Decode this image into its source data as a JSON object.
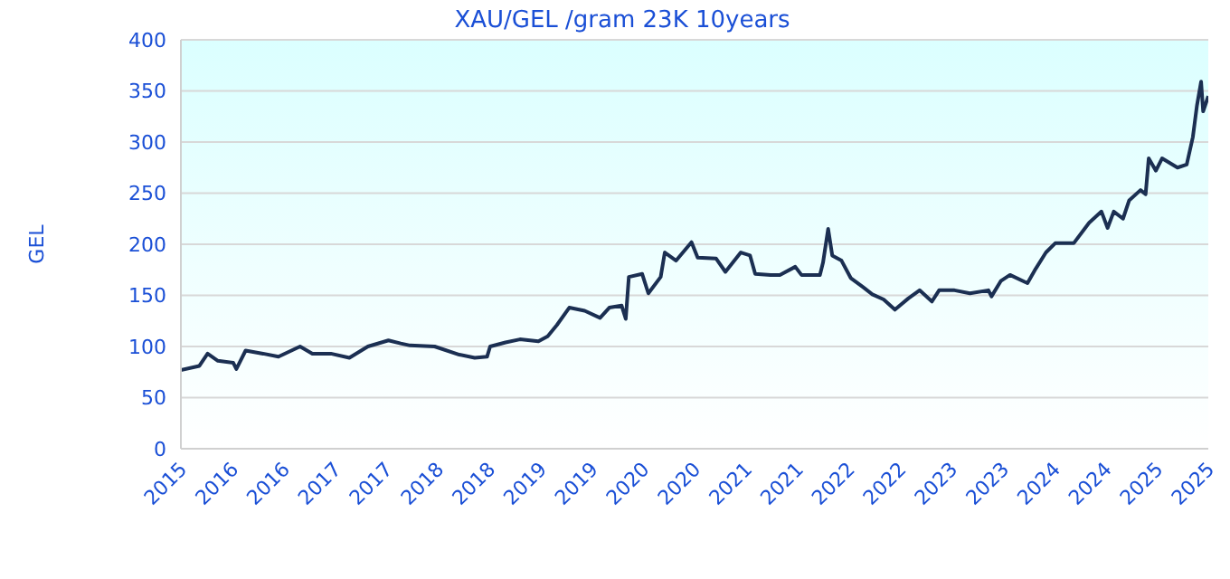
{
  "chart_data": {
    "type": "line",
    "title": "XAU/GEL /gram 23K 10years",
    "ylabel": "GEL",
    "grid": "y",
    "marker": "none",
    "line_style": "solid",
    "xlim": [
      2015.5,
      2025.5
    ],
    "xticks": [
      {
        "value": 2015.5,
        "label": "2015"
      },
      {
        "value": 2016,
        "label": "2016"
      },
      {
        "value": 2016.5,
        "label": "2016"
      },
      {
        "value": 2017,
        "label": "2017"
      },
      {
        "value": 2017.5,
        "label": "2017"
      },
      {
        "value": 2018,
        "label": "2018"
      },
      {
        "value": 2018.5,
        "label": "2018"
      },
      {
        "value": 2019,
        "label": "2019"
      },
      {
        "value": 2019.5,
        "label": "2019"
      },
      {
        "value": 2020,
        "label": "2020"
      },
      {
        "value": 2020.5,
        "label": "2020"
      },
      {
        "value": 2021,
        "label": "2021"
      },
      {
        "value": 2021.5,
        "label": "2021"
      },
      {
        "value": 2022,
        "label": "2022"
      },
      {
        "value": 2022.5,
        "label": "2022"
      },
      {
        "value": 2023,
        "label": "2023"
      },
      {
        "value": 2023.5,
        "label": "2023"
      },
      {
        "value": 2024,
        "label": "2024"
      },
      {
        "value": 2024.5,
        "label": "2024"
      },
      {
        "value": 2025,
        "label": "2025"
      },
      {
        "value": 2025.5,
        "label": "2025"
      }
    ],
    "ylim": [
      0,
      400
    ],
    "yticks": [
      0,
      50,
      100,
      150,
      200,
      250,
      300,
      350,
      400
    ],
    "x": [
      2015.5,
      2015.68,
      2015.76,
      2015.86,
      2016.01,
      2016.04,
      2016.13,
      2016.3,
      2016.45,
      2016.66,
      2016.78,
      2016.96,
      2017.14,
      2017.32,
      2017.52,
      2017.64,
      2017.73,
      2017.97,
      2018.21,
      2018.36,
      2018.48,
      2018.51,
      2018.66,
      2018.8,
      2018.98,
      2019.07,
      2019.16,
      2019.28,
      2019.43,
      2019.58,
      2019.67,
      2019.79,
      2019.83,
      2019.86,
      2019.99,
      2020.05,
      2020.17,
      2020.21,
      2020.32,
      2020.47,
      2020.53,
      2020.71,
      2020.8,
      2020.95,
      2021.04,
      2021.09,
      2021.24,
      2021.33,
      2021.48,
      2021.54,
      2021.72,
      2021.75,
      2021.8,
      2021.84,
      2021.93,
      2022.02,
      2022.14,
      2022.23,
      2022.34,
      2022.45,
      2022.58,
      2022.69,
      2022.81,
      2022.88,
      2023.03,
      2023.18,
      2023.36,
      2023.39,
      2023.48,
      2023.57,
      2023.74,
      2023.82,
      2023.92,
      2024.01,
      2024.19,
      2024.34,
      2024.46,
      2024.52,
      2024.58,
      2024.67,
      2024.73,
      2024.84,
      2024.89,
      2024.92,
      2024.99,
      2025.05,
      2025.2,
      2025.29,
      2025.35,
      2025.39,
      2025.43,
      2025.45,
      2025.5
    ],
    "series": [
      {
        "color": "#1b2f52",
        "values": [
          77,
          81,
          93,
          86,
          84,
          78,
          96,
          93,
          90,
          100,
          93,
          93,
          89,
          100,
          106,
          103,
          101,
          100,
          92,
          89,
          90,
          100,
          104,
          107,
          105,
          110,
          121,
          138,
          135,
          128,
          138,
          140,
          127,
          168,
          171,
          152,
          168,
          192,
          184,
          202,
          187,
          186,
          173,
          192,
          189,
          171,
          170,
          170,
          178,
          170,
          170,
          182,
          215,
          189,
          184,
          167,
          158,
          151,
          146,
          136,
          147,
          155,
          144,
          155,
          155,
          152,
          155,
          149,
          164,
          170,
          162,
          176,
          192,
          201,
          201,
          221,
          232,
          216,
          232,
          225,
          243,
          253,
          249,
          284,
          272,
          284,
          275,
          278,
          305,
          336,
          359,
          330,
          345
        ]
      }
    ]
  }
}
